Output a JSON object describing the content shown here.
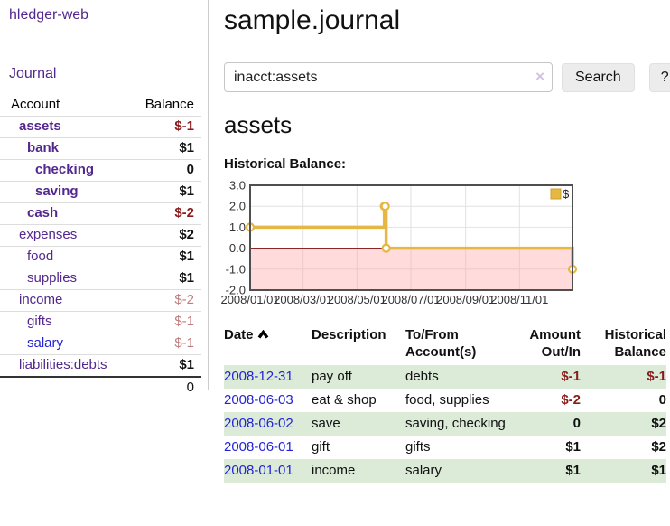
{
  "sidebar": {
    "app_title": "hledger-web",
    "journal_label": "Journal",
    "accounts_table": {
      "headers": {
        "account": "Account",
        "balance": "Balance"
      },
      "rows": [
        {
          "name": "assets",
          "balance": "$-1",
          "depth": 0,
          "bold": true,
          "neg": "strong"
        },
        {
          "name": "bank",
          "balance": "$1",
          "depth": 1,
          "bold": true,
          "neg": "none"
        },
        {
          "name": "checking",
          "balance": "0",
          "depth": 2,
          "bold": true,
          "neg": "none"
        },
        {
          "name": "saving",
          "balance": "$1",
          "depth": 2,
          "bold": true,
          "neg": "none"
        },
        {
          "name": "cash",
          "balance": "$-2",
          "depth": 1,
          "bold": true,
          "neg": "strong"
        },
        {
          "name": "expenses",
          "balance": "$2",
          "depth": 0,
          "bold": false,
          "neg": "none"
        },
        {
          "name": "food",
          "balance": "$1",
          "depth": 1,
          "bold": false,
          "neg": "none"
        },
        {
          "name": "supplies",
          "balance": "$1",
          "depth": 1,
          "bold": false,
          "neg": "none"
        },
        {
          "name": "income",
          "balance": "$-2",
          "depth": 0,
          "bold": false,
          "neg": "soft"
        },
        {
          "name": "gifts",
          "balance": "$-1",
          "depth": 1,
          "bold": false,
          "neg": "soft"
        },
        {
          "name": "salary",
          "balance": "$-1",
          "depth": 1,
          "bold": false,
          "neg": "soft",
          "link_style": "unvisited"
        },
        {
          "name": "liabilities:debts",
          "balance": "$1",
          "depth": 0,
          "bold": false,
          "neg": "none"
        }
      ],
      "total": "0"
    }
  },
  "main": {
    "title": "sample.journal",
    "search": {
      "value": "inacct:assets",
      "button_label": "Search",
      "help_label": "?"
    },
    "account_heading": "assets",
    "chart_label": "Historical Balance:"
  },
  "icons": {
    "clear_glyph": "×",
    "sort_ascending_glyph": "chevron-up"
  },
  "chart_data": {
    "type": "line",
    "title": "Historical Balance:",
    "step": true,
    "series": [
      {
        "name": "$",
        "color": "#e6b843",
        "points": [
          [
            "2008-01-01",
            1
          ],
          [
            "2008-06-01",
            2
          ],
          [
            "2008-06-02",
            2
          ],
          [
            "2008-06-03",
            0
          ],
          [
            "2008-12-31",
            -1
          ]
        ]
      }
    ],
    "x_ticks": [
      {
        "date": "2008-01-01",
        "label": "2008/01/01"
      },
      {
        "date": "2008-03-01",
        "label": "2008/03/01"
      },
      {
        "date": "2008-05-01",
        "label": "2008/05/01"
      },
      {
        "date": "2008-07-01",
        "label": "2008/07/01"
      },
      {
        "date": "2008-09-01",
        "label": "2008/09/01"
      },
      {
        "date": "2008-11-01",
        "label": "2008/11/01"
      }
    ],
    "y_ticks": [
      "3.0",
      "2.0",
      "1.0",
      "0.0",
      "-1.0",
      "-2.0"
    ],
    "xlim": [
      "2008-01-01",
      "2008-12-31"
    ],
    "ylim": [
      -2,
      3
    ],
    "grid": true,
    "legend": {
      "label": "$",
      "position": "top-right"
    },
    "colors": {
      "line": "#e6b843",
      "marker_fill": "#ffffff",
      "grid": "#e2e2e2",
      "border": "#4f4f4f",
      "zero_line": "#7c0a0a",
      "negative_region": "rgba(255,160,160,0.38)"
    }
  },
  "register": {
    "headers": {
      "date": "Date",
      "description": "Description",
      "accounts": "To/From Account(s)",
      "amount": "Amount Out/In",
      "balance": "Historical Balance"
    },
    "rows": [
      {
        "date": "2008-12-31",
        "description": "pay off",
        "accounts": "debts",
        "amount": "$-1",
        "balance": "$-1",
        "amount_neg": true,
        "balance_neg": true
      },
      {
        "date": "2008-06-03",
        "description": "eat & shop",
        "accounts": "food, supplies",
        "amount": "$-2",
        "balance": "0",
        "amount_neg": true,
        "balance_neg": false
      },
      {
        "date": "2008-06-02",
        "description": "save",
        "accounts": "saving, checking",
        "amount": "0",
        "balance": "$2",
        "amount_neg": false,
        "balance_neg": false
      },
      {
        "date": "2008-06-01",
        "description": "gift",
        "accounts": "gifts",
        "amount": "$1",
        "balance": "$2",
        "amount_neg": false,
        "balance_neg": false
      },
      {
        "date": "2008-01-01",
        "description": "income",
        "accounts": "salary",
        "amount": "$1",
        "balance": "$1",
        "amount_neg": false,
        "balance_neg": false
      }
    ]
  }
}
